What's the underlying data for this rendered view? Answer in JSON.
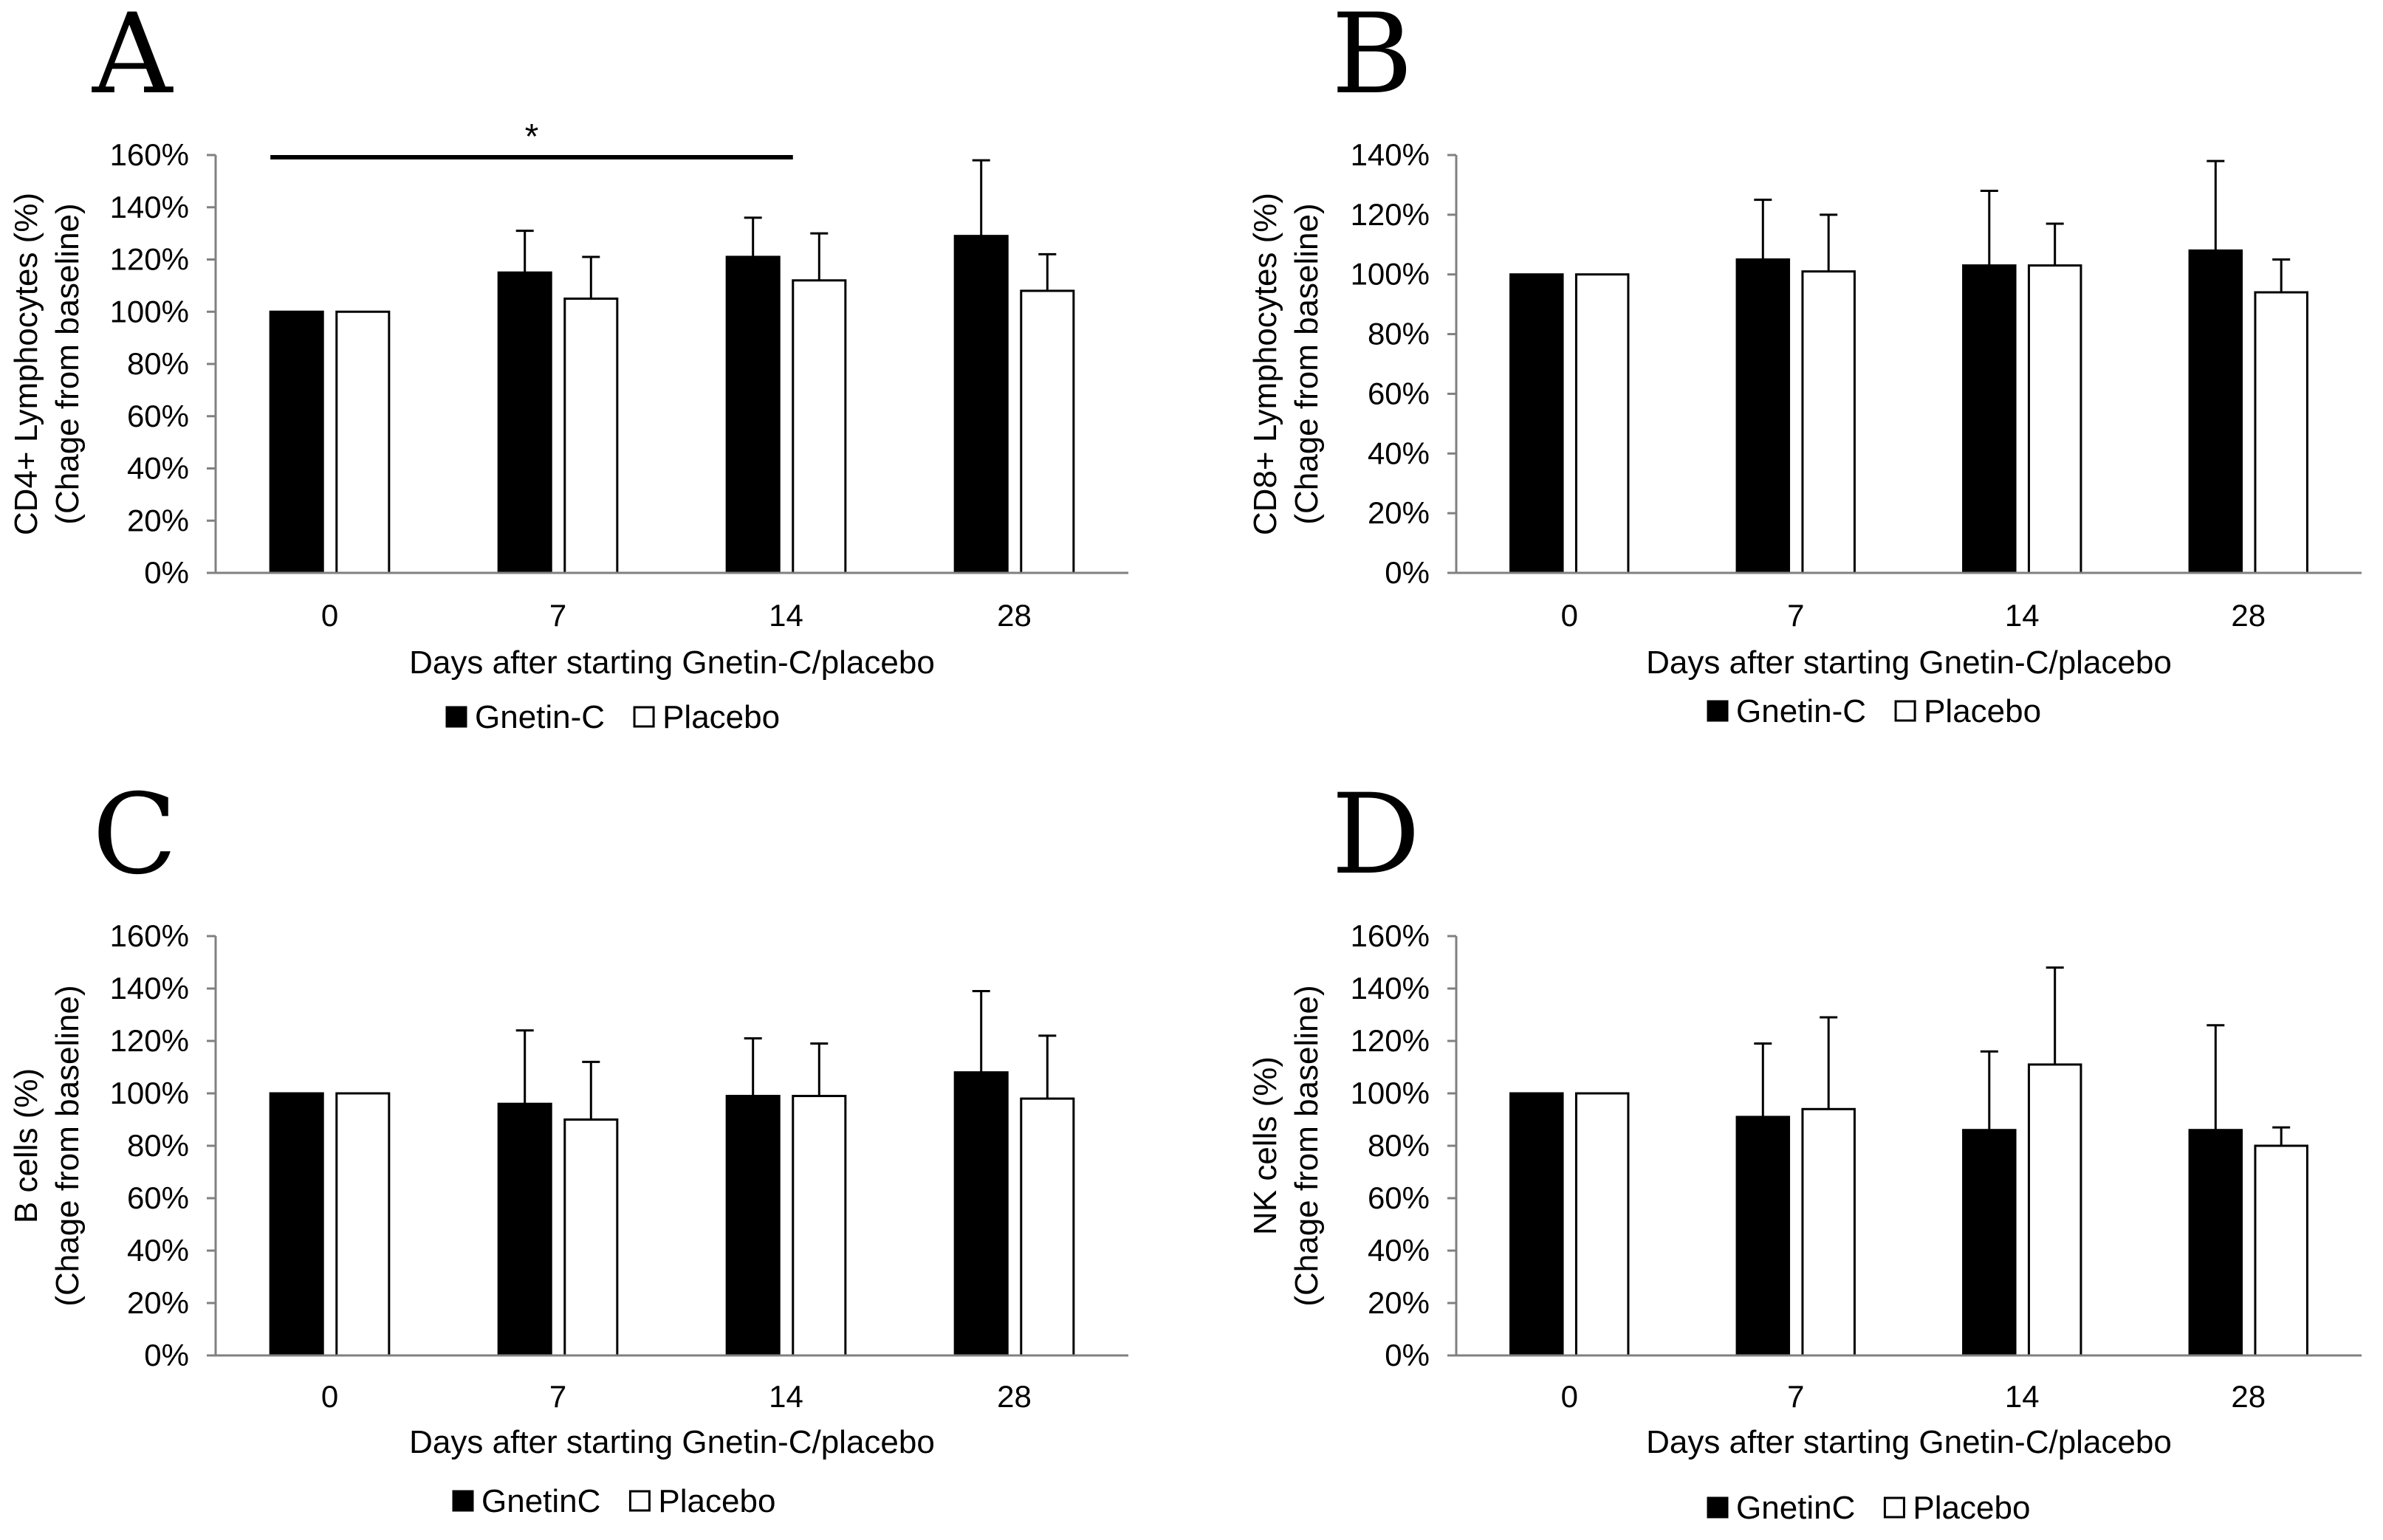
{
  "chart_data": [
    {
      "panel": "A",
      "type": "bar",
      "categories": [
        "0",
        "7",
        "14",
        "28"
      ],
      "series": [
        {
          "name": "Gnetin-C",
          "color": "#000000",
          "values": [
            100,
            115,
            121,
            129
          ],
          "errors": [
            0,
            16,
            15,
            29
          ]
        },
        {
          "name": "Placebo",
          "color": "#ffffff",
          "values": [
            100,
            105,
            112,
            108
          ],
          "errors": [
            0,
            16,
            18,
            14
          ]
        }
      ],
      "ylabel_lines": [
        "CD4+ Lymphocytes (%)",
        "(Chage from baseline)"
      ],
      "xlabel": "Days after starting Gnetin-C/placebo",
      "ylim": [
        0,
        160
      ],
      "yticks": [
        "0%",
        "20%",
        "40%",
        "60%",
        "80%",
        "100%",
        "120%",
        "140%",
        "160%"
      ],
      "legend_position": "bottom",
      "significance": {
        "label": "*",
        "from_category": "0",
        "to_category": "14"
      }
    },
    {
      "panel": "B",
      "type": "bar",
      "categories": [
        "0",
        "7",
        "14",
        "28"
      ],
      "series": [
        {
          "name": "Gnetin-C",
          "color": "#000000",
          "values": [
            100,
            105,
            103,
            108
          ],
          "errors": [
            0,
            20,
            25,
            30
          ]
        },
        {
          "name": "Placebo",
          "color": "#ffffff",
          "values": [
            100,
            101,
            103,
            94
          ],
          "errors": [
            0,
            19,
            14,
            11
          ]
        }
      ],
      "ylabel_lines": [
        "CD8+ Lymphocytes (%)",
        "(Chage from baseline)"
      ],
      "xlabel": "Days after starting Gnetin-C/placebo",
      "ylim": [
        0,
        140
      ],
      "yticks": [
        "0%",
        "20%",
        "40%",
        "60%",
        "80%",
        "100%",
        "120%",
        "140%"
      ],
      "legend_position": "bottom"
    },
    {
      "panel": "C",
      "type": "bar",
      "categories": [
        "0",
        "7",
        "14",
        "28"
      ],
      "series": [
        {
          "name": "GnetinC",
          "color": "#000000",
          "values": [
            100,
            96,
            99,
            108
          ],
          "errors": [
            0,
            28,
            22,
            31
          ]
        },
        {
          "name": "Placebo",
          "color": "#ffffff",
          "values": [
            100,
            90,
            99,
            98
          ],
          "errors": [
            0,
            22,
            20,
            24
          ]
        }
      ],
      "ylabel_lines": [
        "B cells (%)",
        "(Chage from baseline)"
      ],
      "xlabel": "Days after starting Gnetin-C/placebo",
      "ylim": [
        0,
        160
      ],
      "yticks": [
        "0%",
        "20%",
        "40%",
        "60%",
        "80%",
        "100%",
        "120%",
        "140%",
        "160%"
      ],
      "legend_position": "bottom"
    },
    {
      "panel": "D",
      "type": "bar",
      "categories": [
        "0",
        "7",
        "14",
        "28"
      ],
      "series": [
        {
          "name": "GnetinC",
          "color": "#000000",
          "values": [
            100,
            91,
            86,
            86
          ],
          "errors": [
            0,
            28,
            30,
            40
          ]
        },
        {
          "name": "Placebo",
          "color": "#ffffff",
          "values": [
            100,
            94,
            111,
            80
          ],
          "errors": [
            0,
            35,
            37,
            7
          ]
        }
      ],
      "ylabel_lines": [
        "NK cells (%)",
        "(Chage from baseline)"
      ],
      "xlabel": "Days after starting Gnetin-C/placebo",
      "ylim": [
        0,
        160
      ],
      "yticks": [
        "0%",
        "20%",
        "40%",
        "60%",
        "80%",
        "100%",
        "120%",
        "140%",
        "160%"
      ],
      "legend_position": "bottom"
    }
  ]
}
